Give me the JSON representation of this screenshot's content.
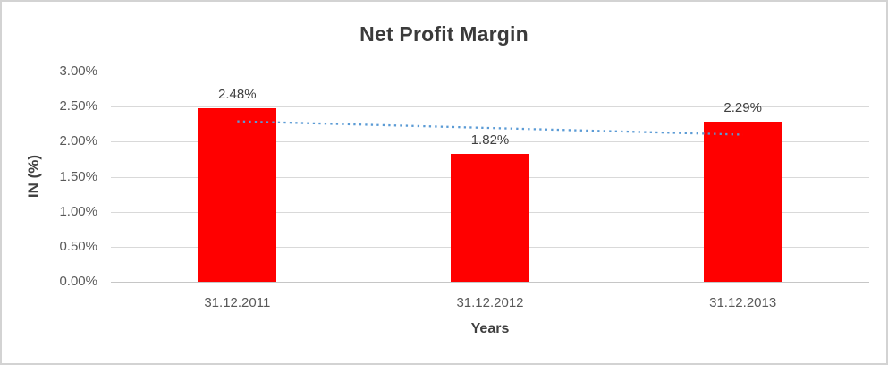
{
  "frame": {
    "background": "#ffffff",
    "border_color": "#d3d3d3"
  },
  "chart_data": {
    "type": "bar",
    "title": "Net Profit Margin",
    "xlabel": "Years",
    "ylabel": "IN (%)",
    "categories": [
      "31.12.2011",
      "31.12.2012",
      "31.12.2013"
    ],
    "values": [
      2.48,
      1.82,
      2.29
    ],
    "data_labels": [
      "2.48%",
      "1.82%",
      "2.29%"
    ],
    "ylim": [
      0,
      3
    ],
    "yticks": [
      {
        "value": 3.0,
        "label": "3.00%"
      },
      {
        "value": 2.5,
        "label": "2.50%"
      },
      {
        "value": 2.0,
        "label": "2.00%"
      },
      {
        "value": 1.5,
        "label": "1.50%"
      },
      {
        "value": 1.0,
        "label": "1.00%"
      },
      {
        "value": 0.5,
        "label": "0.50%"
      },
      {
        "value": 0.0,
        "label": "0.00%"
      }
    ],
    "grid": true,
    "legend": "none",
    "bar_color": "#ff0000",
    "gridline_color": "#d9d9d9",
    "trendline": {
      "type": "linear",
      "style": "dotted",
      "color": "#5b9bd5",
      "start_value": 2.29,
      "end_value": 2.1
    }
  }
}
